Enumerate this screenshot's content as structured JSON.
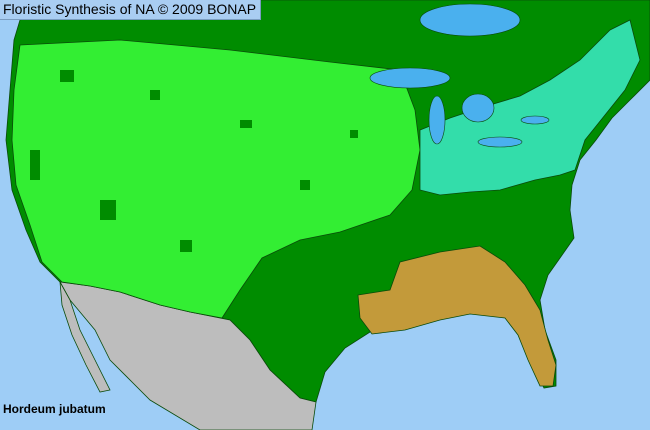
{
  "header": {
    "title": "Floristic Synthesis of NA © 2009 BONAP"
  },
  "map": {
    "species": "Hordeum jubatum",
    "colors": {
      "ocean": "#9ecdf6",
      "lakes": "#4ab0ee",
      "present_not_rare": "#008c00",
      "present_in_county": "#33ee33",
      "rare": "#33ddaa",
      "absent_state": "#c39a3a",
      "outside_region": "#bdbdbd"
    }
  }
}
